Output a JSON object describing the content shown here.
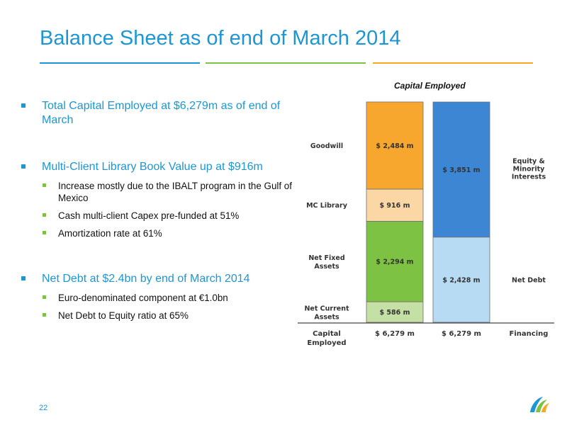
{
  "slide": {
    "title": "Balance Sheet as of end of March 2014",
    "page_number": "22",
    "rule_colors": [
      "#1d96d3",
      "#7dc242",
      "#f7a823"
    ]
  },
  "bullets": {
    "b1": "Total Capital Employed at $6,279m as of end of March",
    "b2": "Multi-Client Library Book Value up at $916m",
    "b2_subs": [
      "Increase mostly due to the IBALT program in the Gulf of Mexico",
      "Cash multi-client Capex pre-funded at 51%",
      "Amortization rate at 61%"
    ],
    "b3": "Net Debt at $2.4bn by end of March 2014",
    "b3_subs": [
      "Euro-denominated component at €1.0bn",
      "Net Debt to Equity ratio at 65%"
    ]
  },
  "chart_data": {
    "type": "bar",
    "stacked": true,
    "title": "Capital Employed",
    "categories": [
      "Capital Employed",
      "Financing"
    ],
    "category_labels": [
      "$ 6,279 m",
      "$ 6,279 m"
    ],
    "left_labels": [
      "Goodwill",
      "MC Library",
      "Net Fixed Assets",
      "Net Current Assets"
    ],
    "right_labels": [
      "Equity & Minority Interests",
      "Net Debt"
    ],
    "bottom_labels": [
      "Capital Employed",
      "Financing"
    ],
    "total": 6279,
    "stacks": [
      {
        "name": "Capital Employed",
        "segments": [
          {
            "name": "Goodwill",
            "value": 2484,
            "label": "$ 2,484 m",
            "color": "#f7a72e"
          },
          {
            "name": "MC Library",
            "value": 916,
            "label": "$ 916 m",
            "color": "#fbd7a6"
          },
          {
            "name": "Net Fixed Assets",
            "value": 2294,
            "label": "$ 2,294 m",
            "color": "#7dc242"
          },
          {
            "name": "Net Current Assets",
            "value": 586,
            "label": "$ 586 m",
            "color": "#c5e0a5"
          }
        ]
      },
      {
        "name": "Financing",
        "segments": [
          {
            "name": "Equity & Minority Interests",
            "value": 3851,
            "label": "$ 3,851 m",
            "color": "#3d86d4"
          },
          {
            "name": "Net Debt",
            "value": 2428,
            "label": "$ 2,428 m",
            "color": "#b8dbf4"
          }
        ]
      }
    ]
  }
}
